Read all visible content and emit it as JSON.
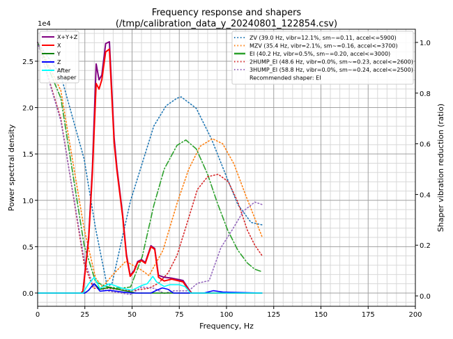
{
  "chart_data": {
    "type": "line",
    "title": "Frequency response and shapers",
    "subtitle": "(/tmp/calibration_data_y_20240801_122854.csv)",
    "xlabel": "Frequency, Hz",
    "ylabel": "Power spectral density",
    "y2label": "Shaper vibration reduction (ratio)",
    "y_scale_label": "1e4",
    "xlim": [
      0,
      200
    ],
    "ylim": [
      -0.143,
      2.845
    ],
    "y2lim": [
      -0.041,
      1.052
    ],
    "xticks": [
      "0",
      "25",
      "50",
      "75",
      "100",
      "125",
      "150",
      "175",
      "200"
    ],
    "yticks": [
      "0.0",
      "0.5",
      "1.0",
      "1.5",
      "2.0",
      "2.5"
    ],
    "y2ticks": [
      "0.0",
      "0.2",
      "0.4",
      "0.6",
      "0.8",
      "1.0"
    ],
    "grid": true,
    "psd_series": [
      {
        "name": "X+Y+Z",
        "color": "#800080",
        "x": [
          0,
          23,
          24,
          25,
          27,
          29,
          31,
          32.5,
          34,
          36,
          38,
          40.5,
          42,
          45,
          47,
          49,
          51,
          53,
          55,
          57,
          60,
          62,
          64,
          67,
          71,
          77,
          80,
          81.5,
          119
        ],
        "values": [
          0,
          0,
          0.02,
          0.22,
          0.6,
          1.35,
          2.47,
          2.3,
          2.35,
          2.69,
          2.71,
          1.67,
          1.35,
          0.85,
          0.42,
          0.19,
          0.24,
          0.34,
          0.36,
          0.33,
          0.51,
          0.48,
          0.19,
          0.17,
          0.16,
          0.135,
          0.04,
          0,
          0
        ]
      },
      {
        "name": "X",
        "color": "#ff0000",
        "x": [
          0,
          23,
          24,
          25,
          27,
          29,
          31,
          32.5,
          34,
          36,
          38,
          40.5,
          42,
          45,
          47,
          49,
          51,
          53,
          55,
          57,
          60,
          62,
          64,
          67,
          71,
          77,
          80,
          81.5,
          119
        ],
        "values": [
          0,
          0,
          0.02,
          0.2,
          0.58,
          1.3,
          2.26,
          2.2,
          2.3,
          2.6,
          2.63,
          1.62,
          1.32,
          0.83,
          0.4,
          0.18,
          0.23,
          0.33,
          0.35,
          0.32,
          0.5,
          0.47,
          0.17,
          0.13,
          0.15,
          0.12,
          0.03,
          0,
          0
        ]
      },
      {
        "name": "Y",
        "color": "#008000",
        "x": [
          0,
          25,
          27,
          29,
          30,
          33,
          38,
          45,
          50,
          52,
          119
        ],
        "values": [
          0,
          0,
          0.03,
          0.08,
          0.1,
          0.04,
          0.06,
          0.03,
          0.01,
          0,
          0
        ]
      },
      {
        "name": "Z",
        "color": "#0000ff",
        "x": [
          0,
          25,
          27,
          29,
          30,
          33,
          38,
          45,
          50,
          60,
          63,
          66,
          69,
          72,
          88,
          93,
          98,
          119
        ],
        "values": [
          0,
          0,
          0.03,
          0.08,
          0.1,
          0.02,
          0.03,
          0.01,
          0,
          0,
          0.03,
          0.055,
          0.04,
          0,
          0,
          0.025,
          0.01,
          0
        ]
      },
      {
        "name": "After\nshaper",
        "color": "#00ffff",
        "x": [
          0,
          24,
          27,
          30,
          33,
          38,
          45,
          50,
          55,
          58,
          61,
          63,
          67,
          70,
          75,
          78,
          81,
          119
        ],
        "values": [
          0,
          0,
          0.1,
          0.17,
          0.05,
          0.1,
          0.05,
          0.03,
          0.08,
          0.1,
          0.18,
          0.12,
          0.07,
          0.09,
          0.09,
          0.07,
          0,
          0
        ]
      }
    ],
    "shaper_series": [
      {
        "name": "ZV (39.0 Hz, vibr=12.1%, sm~=0.11, accel<=5900)",
        "color": "#1f77b4",
        "style": "dotted",
        "x": [
          0,
          12.3,
          24.6,
          30.7,
          36.9,
          39.4,
          49.2,
          61.5,
          68,
          73.8,
          76,
          84,
          92,
          100,
          106,
          113,
          119
        ],
        "values": [
          1.0,
          0.87,
          0.54,
          0.265,
          0.035,
          0.05,
          0.375,
          0.67,
          0.75,
          0.78,
          0.785,
          0.74,
          0.62,
          0.47,
          0.36,
          0.29,
          0.28
        ]
      },
      {
        "name": "MZV (35.4 Hz, vibr=2.1%, sm~=0.16, accel<=3700)",
        "color": "#ff7f0e",
        "style": "dotted",
        "x": [
          0,
          12.3,
          24.6,
          30.7,
          34.4,
          39.4,
          46.7,
          55.4,
          59,
          66.4,
          73.8,
          80,
          86,
          92.6,
          98,
          104,
          110,
          119
        ],
        "values": [
          1.0,
          0.81,
          0.265,
          0.07,
          0.035,
          0.08,
          0.137,
          0.1,
          0.08,
          0.18,
          0.365,
          0.5,
          0.59,
          0.62,
          0.6,
          0.52,
          0.4,
          0.23
        ]
      },
      {
        "name": "EI (40.2 Hz, vibr=0.5%, sm~=0.20, accel<=3000)",
        "color": "#2ca02c",
        "style": "dashdot",
        "x": [
          0,
          12.3,
          24.6,
          30.7,
          36.9,
          44,
          49.2,
          55.4,
          61.5,
          67,
          73.8,
          78.5,
          84,
          90,
          95,
          100.6,
          106,
          111,
          115,
          119
        ],
        "values": [
          1.0,
          0.78,
          0.2,
          0.055,
          0.035,
          0.03,
          0.035,
          0.155,
          0.357,
          0.5,
          0.594,
          0.615,
          0.58,
          0.48,
          0.37,
          0.26,
          0.18,
          0.13,
          0.105,
          0.095
        ]
      },
      {
        "name": "2HUMP_EI (48.6 Hz, vibr=0.0%, sm~=0.23, accel<=2600)",
        "color": "#d62728",
        "style": "dotted",
        "x": [
          0,
          12.3,
          24.6,
          29.5,
          36.9,
          49.2,
          59,
          64,
          69,
          73.8,
          78,
          84.6,
          90,
          95.6,
          101,
          106,
          111,
          115,
          119
        ],
        "values": [
          1.0,
          0.7,
          0.127,
          0.03,
          0.03,
          0.02,
          0.03,
          0.05,
          0.09,
          0.16,
          0.26,
          0.42,
          0.47,
          0.48,
          0.45,
          0.37,
          0.26,
          0.2,
          0.157
        ]
      },
      {
        "name": "3HUMP_EI (58.8 Hz, vibr=0.0%, sm~=0.24, accel<=2500)",
        "color": "#9467bd",
        "style": "dotted",
        "x": [
          0,
          12.3,
          24.6,
          29.5,
          36.9,
          49.2,
          55,
          61.5,
          67,
          72,
          80,
          84.6,
          90.8,
          97,
          103,
          109,
          115,
          119
        ],
        "values": [
          1.0,
          0.69,
          0.145,
          0.04,
          0.02,
          0.005,
          0.035,
          0.03,
          0.01,
          0.02,
          0.02,
          0.05,
          0.06,
          0.19,
          0.26,
          0.335,
          0.37,
          0.36
        ]
      }
    ],
    "recommended": "Recommended shaper: EI",
    "legend_left_placement": "top-left",
    "legend_right_placement": "top-right"
  }
}
